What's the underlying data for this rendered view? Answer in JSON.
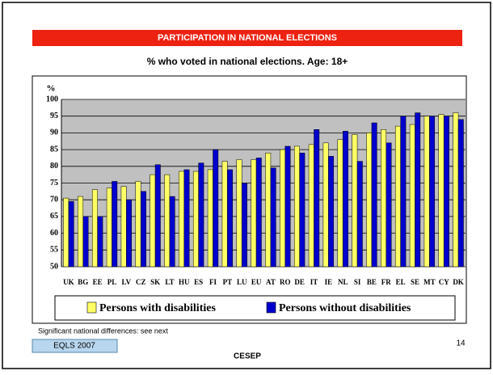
{
  "slide": {
    "footnote": "Significant national differences: see next",
    "tag": "EQLS 2007",
    "footer": "CESEP",
    "page": "14"
  },
  "chart_data": {
    "type": "bar",
    "title": "PARTICIPATION IN NATIONAL ELECTIONS",
    "subtitle": "% who voted in national elections. Age: 18+",
    "y_label": "%",
    "categories": [
      "UK",
      "BG",
      "EE",
      "PL",
      "LV",
      "CZ",
      "SK",
      "LT",
      "HU",
      "ES",
      "FI",
      "PT",
      "LU",
      "EU",
      "AT",
      "RO",
      "DE",
      "IT",
      "IE",
      "NL",
      "SI",
      "BE",
      "FR",
      "EL",
      "SE",
      "MT",
      "CY",
      "DK"
    ],
    "series": [
      {
        "name": "Persons with disabilities",
        "color": "#ffff66",
        "values": [
          70.5,
          71,
          73,
          73.5,
          74,
          75.5,
          77.5,
          77.5,
          78.5,
          78.5,
          79,
          81.5,
          82,
          82,
          84,
          85,
          86,
          86.5,
          87,
          88,
          89.5,
          90,
          91,
          92,
          92.5,
          95,
          95.5,
          96
        ]
      },
      {
        "name": "Persons without disabilities",
        "color": "#0000cc",
        "values": [
          69.5,
          65,
          65,
          75.5,
          70,
          72.5,
          80.5,
          71,
          79,
          81,
          85,
          79,
          75,
          82.5,
          79.5,
          86,
          84,
          91,
          83,
          90.5,
          81.5,
          93,
          87,
          95,
          96,
          95,
          95,
          94
        ]
      }
    ],
    "ylim": [
      50,
      100
    ],
    "yticks": [
      50,
      55,
      60,
      65,
      70,
      75,
      80,
      85,
      90,
      95,
      100
    ],
    "grid": true
  }
}
